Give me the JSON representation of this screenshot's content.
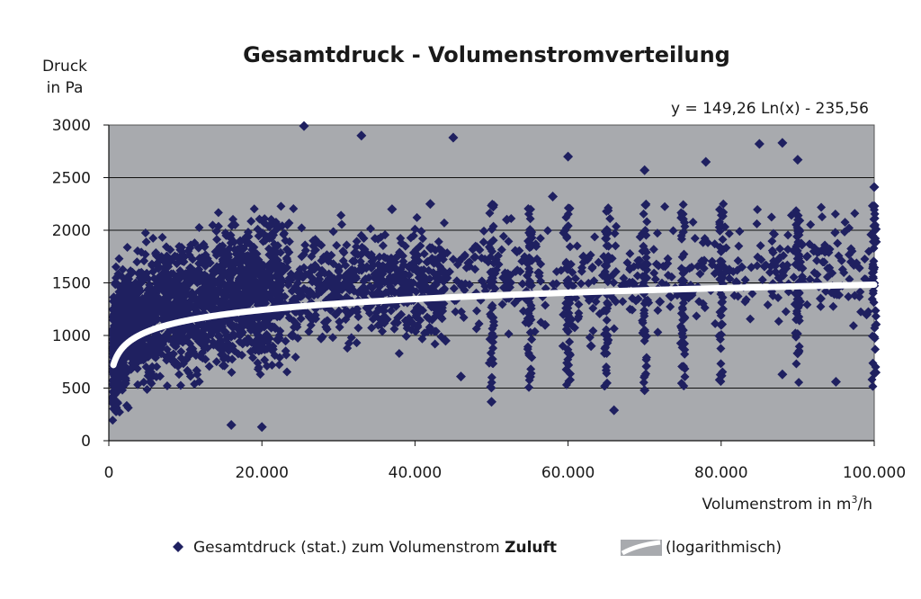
{
  "chart_data": {
    "type": "scatter",
    "title": "Gesamtdruck - Volumenstromverteilung",
    "ylabel_line1": "Druck",
    "ylabel_line2": "in Pa",
    "xlabel_prefix": "Volumenstrom in m",
    "xlabel_sup": "3",
    "xlabel_suffix": "/h",
    "equation": "y = 149,26 Ln(x) - 235,56",
    "xlim": [
      0,
      100000
    ],
    "ylim": [
      0,
      3000
    ],
    "x_ticks": [
      0,
      20000,
      40000,
      60000,
      80000,
      100000
    ],
    "x_tick_labels": [
      "0",
      "20.000",
      "40.000",
      "60.000",
      "80.000",
      "100.000"
    ],
    "y_ticks": [
      0,
      500,
      1000,
      1500,
      2000,
      2500,
      3000
    ],
    "y_tick_labels": [
      "0",
      "500",
      "1000",
      "1500",
      "2000",
      "2500",
      "3000"
    ],
    "grid": "horizontal",
    "plot_background": "#a8aaae",
    "marker_color": "#1f2060",
    "trend_color": "#ffffff",
    "legend_position": "bottom",
    "series": [
      {
        "name_plain": "Gesamtdruck (stat.) zum Volumenstrom ",
        "name_bold": "Zuluft",
        "marker": "diamond",
        "sample_points": [
          [
            25500,
            2990
          ],
          [
            33000,
            2900
          ],
          [
            45000,
            2880
          ],
          [
            60000,
            2700
          ],
          [
            70000,
            2570
          ],
          [
            78000,
            2650
          ],
          [
            85000,
            2820
          ],
          [
            88000,
            2830
          ],
          [
            90000,
            2670
          ],
          [
            100000,
            2410
          ],
          [
            100000,
            2230
          ],
          [
            100000,
            2040
          ],
          [
            95000,
            560
          ],
          [
            90000,
            830
          ],
          [
            88000,
            630
          ],
          [
            66000,
            290
          ],
          [
            20000,
            130
          ],
          [
            16000,
            150
          ],
          [
            50000,
            370
          ],
          [
            46000,
            610
          ],
          [
            55000,
            1850
          ],
          [
            62000,
            1750
          ],
          [
            68000,
            1500
          ],
          [
            72000,
            1320
          ],
          [
            75000,
            1050
          ],
          [
            80000,
            1100
          ],
          [
            82000,
            1500
          ],
          [
            93000,
            1350
          ],
          [
            97000,
            1700
          ],
          [
            99000,
            1200
          ],
          [
            57000,
            1100
          ],
          [
            63000,
            900
          ],
          [
            70000,
            480
          ],
          [
            52000,
            2100
          ],
          [
            58000,
            2320
          ],
          [
            42000,
            2250
          ],
          [
            48000,
            1400
          ],
          [
            44000,
            950
          ],
          [
            40000,
            1700
          ],
          [
            37000,
            2200
          ]
        ]
      },
      {
        "name": "(logarithmisch)",
        "type": "trendline",
        "equation": "149,26 Ln(x) - 235,56",
        "coef_a": 149.26,
        "coef_b": -235.56,
        "x_start": 600,
        "x_end": 100000
      }
    ]
  }
}
